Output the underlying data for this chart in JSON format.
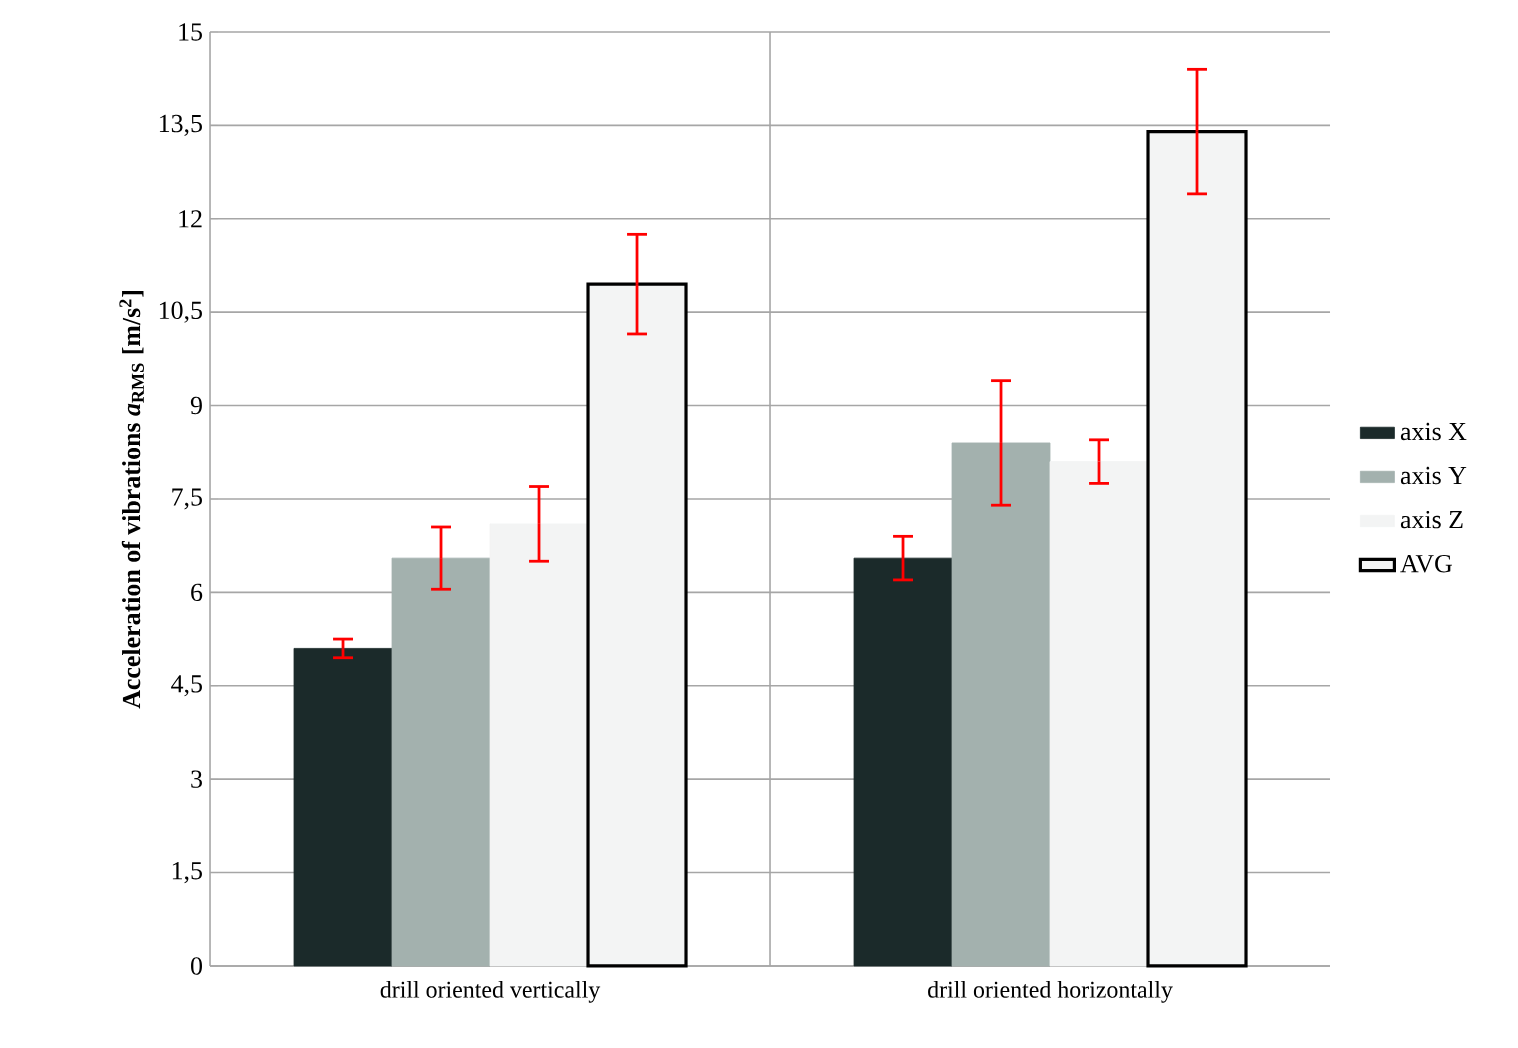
{
  "chart_data": {
    "type": "bar",
    "ylabel": "Acceleration of vibrations *a*$_{RMS}$ [m/s$^{2}$]",
    "categories": [
      "drill oriented vertically",
      "drill oriented horizontally"
    ],
    "series": [
      {
        "name": "axis X",
        "color": "#1b2a2a",
        "values": [
          5.1,
          6.55
        ],
        "errors": [
          0.15,
          0.35
        ]
      },
      {
        "name": "axis Y",
        "color": "#a3b1ae",
        "values": [
          6.55,
          8.4
        ],
        "errors": [
          0.5,
          1.0
        ]
      },
      {
        "name": "axis Z",
        "color": "#f3f4f4",
        "values": [
          7.1,
          8.1
        ],
        "errors": [
          0.6,
          0.35
        ]
      },
      {
        "name": "AVG",
        "color": "#f3f4f4",
        "values": [
          10.95,
          13.4
        ],
        "errors": [
          0.8,
          1.0
        ]
      }
    ],
    "ylim": [
      0,
      15
    ],
    "yticks": [
      0,
      {
        "value": 1.5,
        "label": "1,5"
      },
      3,
      {
        "value": 4.5,
        "label": "4,5"
      },
      6,
      {
        "value": 7.5,
        "label": "7,5"
      },
      9,
      {
        "value": 10.5,
        "label": "10,5"
      },
      12,
      {
        "value": 13.5,
        "label": "13,5"
      },
      15
    ],
    "grid": "y",
    "legend": "right"
  }
}
